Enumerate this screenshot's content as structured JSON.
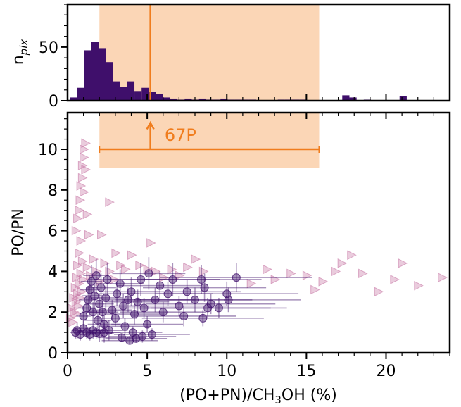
{
  "chart_data": [
    {
      "type": "histogram",
      "panel": "top",
      "ylabel_main": "n",
      "ylabel_sub": "pix",
      "xlim": [
        0,
        24
      ],
      "ylim": [
        0,
        90
      ],
      "yticks": [
        "0",
        "50"
      ],
      "bins": {
        "start": 0.15,
        "width": 0.45,
        "counts": [
          3,
          12,
          47,
          55,
          49,
          36,
          18,
          13,
          18,
          9,
          12,
          8,
          6,
          3,
          2,
          1,
          2,
          1,
          2,
          1,
          1,
          2,
          1,
          1,
          1,
          1,
          0,
          0,
          0,
          1,
          1,
          1,
          1,
          0,
          0,
          0,
          0,
          0,
          5,
          3,
          0,
          1,
          0,
          0,
          0,
          0,
          4,
          0,
          0
        ]
      },
      "shaded_range": [
        2.0,
        15.8
      ],
      "vertical_line": 5.2,
      "colors": {
        "bar": "#3f0f6b",
        "range": "#fbd6b6",
        "line": "#f07d1e"
      }
    },
    {
      "type": "scatter",
      "panel": "bottom",
      "xlabel_parts": [
        "(PO+PN)/CH",
        "3",
        "OH (%)"
      ],
      "ylabel": "PO/PN",
      "xlim": [
        0,
        24
      ],
      "ylim": [
        0,
        11.8
      ],
      "xticks": [
        "0",
        "5",
        "10",
        "15",
        "20"
      ],
      "yticks": [
        "0",
        "2",
        "4",
        "6",
        "8",
        "10"
      ],
      "range_annotation": {
        "label": "67P",
        "x_range": [
          2.0,
          15.8
        ],
        "y": 10.0,
        "arrow_x": 5.2,
        "arrow_y_top": 11.3
      },
      "series": [
        {
          "marker": "circle-with-error-bars",
          "color": "#3f0f6b",
          "points": [
            [
              0.5,
              1.0,
              0.3
            ],
            [
              0.6,
              1.1,
              0.4
            ],
            [
              0.8,
              0.9,
              0.3
            ],
            [
              1.0,
              1.2,
              0.4
            ],
            [
              1.2,
              1.0,
              0.3
            ],
            [
              1.4,
              0.9,
              0.3
            ],
            [
              1.6,
              1.1,
              0.4
            ],
            [
              1.8,
              1.0,
              0.3
            ],
            [
              2.0,
              0.95,
              0.4
            ],
            [
              2.3,
              1.0,
              0.5
            ],
            [
              2.6,
              1.1,
              0.5
            ],
            [
              1.0,
              1.8,
              0.5
            ],
            [
              1.2,
              2.2,
              0.6
            ],
            [
              1.3,
              2.6,
              0.6
            ],
            [
              1.4,
              3.1,
              0.7
            ],
            [
              1.5,
              3.5,
              0.8
            ],
            [
              1.6,
              2.0,
              0.5
            ],
            [
              1.7,
              2.8,
              0.6
            ],
            [
              1.8,
              3.8,
              0.8
            ],
            [
              1.9,
              1.6,
              0.4
            ],
            [
              2.0,
              2.4,
              0.5
            ],
            [
              2.1,
              3.2,
              0.7
            ],
            [
              2.2,
              2.0,
              0.5
            ],
            [
              2.3,
              1.4,
              0.4
            ],
            [
              2.4,
              2.7,
              0.6
            ],
            [
              2.5,
              3.6,
              0.8
            ],
            [
              2.8,
              2.1,
              0.5
            ],
            [
              3.0,
              1.7,
              0.4
            ],
            [
              3.1,
              2.9,
              0.6
            ],
            [
              3.3,
              3.4,
              0.7
            ],
            [
              3.5,
              2.3,
              0.6
            ],
            [
              3.6,
              1.3,
              0.4
            ],
            [
              3.8,
              2.6,
              0.6
            ],
            [
              4.0,
              3.0,
              0.7
            ],
            [
              4.2,
              1.9,
              0.5
            ],
            [
              4.4,
              2.5,
              0.6
            ],
            [
              4.6,
              3.6,
              0.8
            ],
            [
              4.8,
              2.2,
              0.5
            ],
            [
              5.0,
              1.4,
              0.4
            ],
            [
              5.1,
              3.9,
              0.8
            ],
            [
              3.4,
              0.75,
              0.2
            ],
            [
              3.9,
              0.6,
              0.2
            ],
            [
              4.3,
              0.7,
              0.2
            ],
            [
              4.7,
              0.8,
              0.3
            ],
            [
              5.3,
              0.9,
              0.3
            ],
            [
              4.1,
              1.0,
              0.3
            ],
            [
              5.5,
              2.6,
              0.6
            ],
            [
              5.8,
              3.3,
              0.7
            ],
            [
              6.0,
              2.0,
              0.5
            ],
            [
              6.3,
              2.9,
              0.6
            ],
            [
              6.6,
              3.6,
              0.8
            ],
            [
              7.0,
              2.3,
              0.5
            ],
            [
              7.5,
              3.0,
              0.6
            ],
            [
              7.3,
              1.8,
              0.5
            ],
            [
              8.0,
              2.6,
              0.6
            ],
            [
              8.4,
              3.6,
              0.7
            ],
            [
              8.6,
              3.2,
              0.7
            ],
            [
              8.8,
              2.2,
              0.5
            ],
            [
              9.0,
              2.4,
              0.5
            ],
            [
              8.5,
              1.7,
              0.4
            ],
            [
              10.0,
              2.9,
              0.6
            ],
            [
              10.1,
              2.6,
              0.6
            ],
            [
              10.6,
              3.7,
              0.7
            ],
            [
              9.5,
              2.2,
              0.5
            ]
          ]
        },
        {
          "marker": "triangle-right",
          "color": "#c87aa6",
          "points": [
            [
              0.15,
              1.7
            ],
            [
              0.2,
              2.2
            ],
            [
              0.3,
              1.5
            ],
            [
              0.35,
              2.7
            ],
            [
              0.4,
              2.0
            ],
            [
              0.45,
              3.2
            ],
            [
              0.5,
              2.5
            ],
            [
              0.5,
              1.9
            ],
            [
              0.55,
              3.7
            ],
            [
              0.6,
              2.9
            ],
            [
              0.6,
              4.3
            ],
            [
              0.65,
              2.3
            ],
            [
              0.7,
              3.4
            ],
            [
              0.7,
              4.9
            ],
            [
              0.75,
              2.7
            ],
            [
              0.8,
              3.9
            ],
            [
              0.8,
              5.5
            ],
            [
              0.85,
              3.0
            ],
            [
              0.9,
              4.5
            ],
            [
              0.95,
              3.6
            ],
            [
              0.5,
              6.0
            ],
            [
              0.6,
              6.6
            ],
            [
              0.7,
              7.0
            ],
            [
              0.75,
              7.5
            ],
            [
              0.8,
              8.2
            ],
            [
              0.9,
              8.6
            ],
            [
              0.9,
              9.2
            ],
            [
              1.0,
              9.6
            ],
            [
              1.0,
              10.0
            ],
            [
              1.1,
              9.0
            ],
            [
              1.1,
              10.3
            ],
            [
              1.2,
              6.8
            ],
            [
              1.3,
              5.8
            ],
            [
              1.0,
              7.9
            ],
            [
              1.2,
              4.2
            ],
            [
              1.4,
              3.8
            ],
            [
              1.6,
              4.6
            ],
            [
              1.8,
              4.0
            ],
            [
              2.0,
              3.5
            ],
            [
              2.3,
              4.4
            ],
            [
              2.6,
              4.0
            ],
            [
              2.9,
              3.6
            ],
            [
              3.3,
              4.3
            ],
            [
              3.6,
              4.1
            ],
            [
              4.0,
              4.8
            ],
            [
              4.5,
              4.3
            ],
            [
              5.0,
              4.1
            ],
            [
              5.5,
              4.0
            ],
            [
              6.0,
              3.7
            ],
            [
              6.5,
              4.1
            ],
            [
              7.0,
              3.8
            ],
            [
              7.5,
              4.2
            ],
            [
              8.0,
              4.6
            ],
            [
              8.5,
              4.0
            ],
            [
              2.6,
              7.4
            ],
            [
              5.2,
              5.4
            ],
            [
              2.1,
              5.8
            ],
            [
              3.0,
              4.9
            ],
            [
              11.5,
              3.4
            ],
            [
              12.5,
              4.1
            ],
            [
              13.0,
              3.6
            ],
            [
              14.0,
              3.9
            ],
            [
              15.0,
              3.8
            ],
            [
              15.5,
              3.1
            ],
            [
              16.0,
              3.5
            ],
            [
              16.8,
              4.0
            ],
            [
              17.2,
              4.4
            ],
            [
              17.8,
              4.8
            ],
            [
              18.5,
              3.9
            ],
            [
              19.5,
              3.0
            ],
            [
              20.5,
              3.6
            ],
            [
              21.0,
              4.4
            ],
            [
              22.0,
              3.3
            ],
            [
              23.5,
              3.7
            ]
          ]
        }
      ]
    }
  ]
}
